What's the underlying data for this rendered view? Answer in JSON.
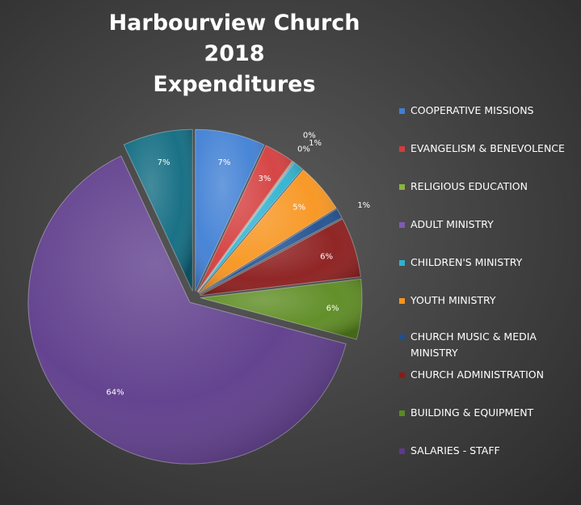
{
  "chart_data": {
    "type": "pie",
    "title": [
      "Harbourview  Church 2018",
      "Expenditures"
    ],
    "slices": [
      {
        "name": "COOPERATIVE MISSIONS",
        "value": 7,
        "label": "7%",
        "color": "#3f7fd4"
      },
      {
        "name": "EVANGELISM & BENEVOLENCE",
        "value": 3,
        "label": "3%",
        "color": "#d43c3c"
      },
      {
        "name": "RELIGIOUS EDUCATION",
        "value": 0.1,
        "label": "0%",
        "color": "#8ab33f"
      },
      {
        "name": "ADULT MINISTRY",
        "value": 0.1,
        "label": "0%",
        "color": "#7d5bb0"
      },
      {
        "name": "CHILDREN'S MINISTRY",
        "value": 1,
        "label": "1%",
        "color": "#2eb3d0"
      },
      {
        "name": "YOUTH MINISTRY",
        "value": 5,
        "label": "5%",
        "color": "#f7941d"
      },
      {
        "name": "CHURCH MUSIC & MEDIA MINISTRY",
        "value": 1,
        "label": "1%",
        "color": "#1f4f8f"
      },
      {
        "name": "CHURCH ADMINISTRATION",
        "value": 6,
        "label": "6%",
        "color": "#8b1a1a"
      },
      {
        "name": "BUILDING & EQUIPMENT",
        "value": 6,
        "label": "6%",
        "color": "#5b8a1f"
      },
      {
        "name": "SALARIES - STAFF",
        "value": 64,
        "label": "64%",
        "color": "#5c3a8a"
      },
      {
        "name": "",
        "value": 7,
        "label": "7%",
        "color": "#0e6a80"
      }
    ],
    "legend_position": "right"
  }
}
